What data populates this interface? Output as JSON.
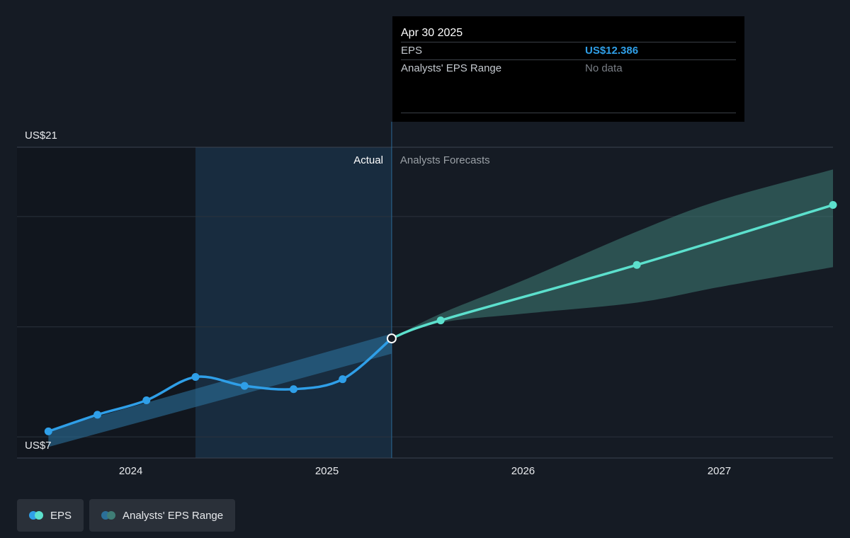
{
  "tooltip": {
    "date": "Apr 30 2025",
    "rows": [
      {
        "label": "EPS",
        "value": "US$12.386"
      },
      {
        "label": "Analysts' EPS Range",
        "value": "No data"
      }
    ]
  },
  "legend": [
    {
      "label": "EPS",
      "icon": "eps-dots-icon",
      "colors": [
        "#2f9fe8",
        "#5ce0cd"
      ]
    },
    {
      "label": "Analysts' EPS Range",
      "icon": "range-dots-icon",
      "colors": [
        "#2b6f99",
        "#3f7d76"
      ]
    }
  ],
  "chart_data": {
    "type": "line",
    "y_top_label": "US$21",
    "y_bottom_label": "US$7",
    "ylim": [
      7,
      21
    ],
    "x_ticks": [
      {
        "label": "2024",
        "x": 2024.0
      },
      {
        "label": "2025",
        "x": 2025.0
      },
      {
        "label": "2026",
        "x": 2026.0
      },
      {
        "label": "2027",
        "x": 2027.0
      }
    ],
    "xlim": [
      2023.42,
      2027.58
    ],
    "section_labels": {
      "actual": "Actual",
      "forecast": "Analysts Forecasts"
    },
    "past_shade_start": 2024.33,
    "current_x": 2025.33,
    "series": [
      {
        "name": "EPS",
        "color": "#2f9fe8",
        "points": [
          {
            "x": 2023.58,
            "y": 8.2
          },
          {
            "x": 2023.83,
            "y": 8.95
          },
          {
            "x": 2024.08,
            "y": 9.6
          },
          {
            "x": 2024.33,
            "y": 10.65
          },
          {
            "x": 2024.58,
            "y": 10.25
          },
          {
            "x": 2024.83,
            "y": 10.1
          },
          {
            "x": 2025.08,
            "y": 10.55
          },
          {
            "x": 2025.33,
            "y": 12.386
          }
        ]
      },
      {
        "name": "EPS forecast",
        "color": "#5ce0cd",
        "points": [
          {
            "x": 2025.33,
            "y": 12.386
          },
          {
            "x": 2025.58,
            "y": 13.2
          },
          {
            "x": 2026.58,
            "y": 15.7
          },
          {
            "x": 2027.58,
            "y": 18.4
          }
        ]
      }
    ],
    "ranges": [
      {
        "name": "Analysts' EPS Range",
        "color": "#2b6f99",
        "x": [
          2023.58,
          2025.33
        ],
        "low": [
          7.5,
          11.7
        ],
        "high": [
          8.25,
          12.6
        ]
      },
      {
        "name": "Analysts' EPS Range",
        "color": "#3f7d76",
        "x": [
          2025.33,
          2025.58,
          2026.0,
          2026.58,
          2027.0,
          2027.58
        ],
        "low": [
          12.386,
          13.1,
          13.5,
          14.0,
          14.7,
          15.6
        ],
        "high": [
          12.386,
          13.5,
          15.0,
          17.2,
          18.6,
          20.0
        ]
      }
    ]
  }
}
